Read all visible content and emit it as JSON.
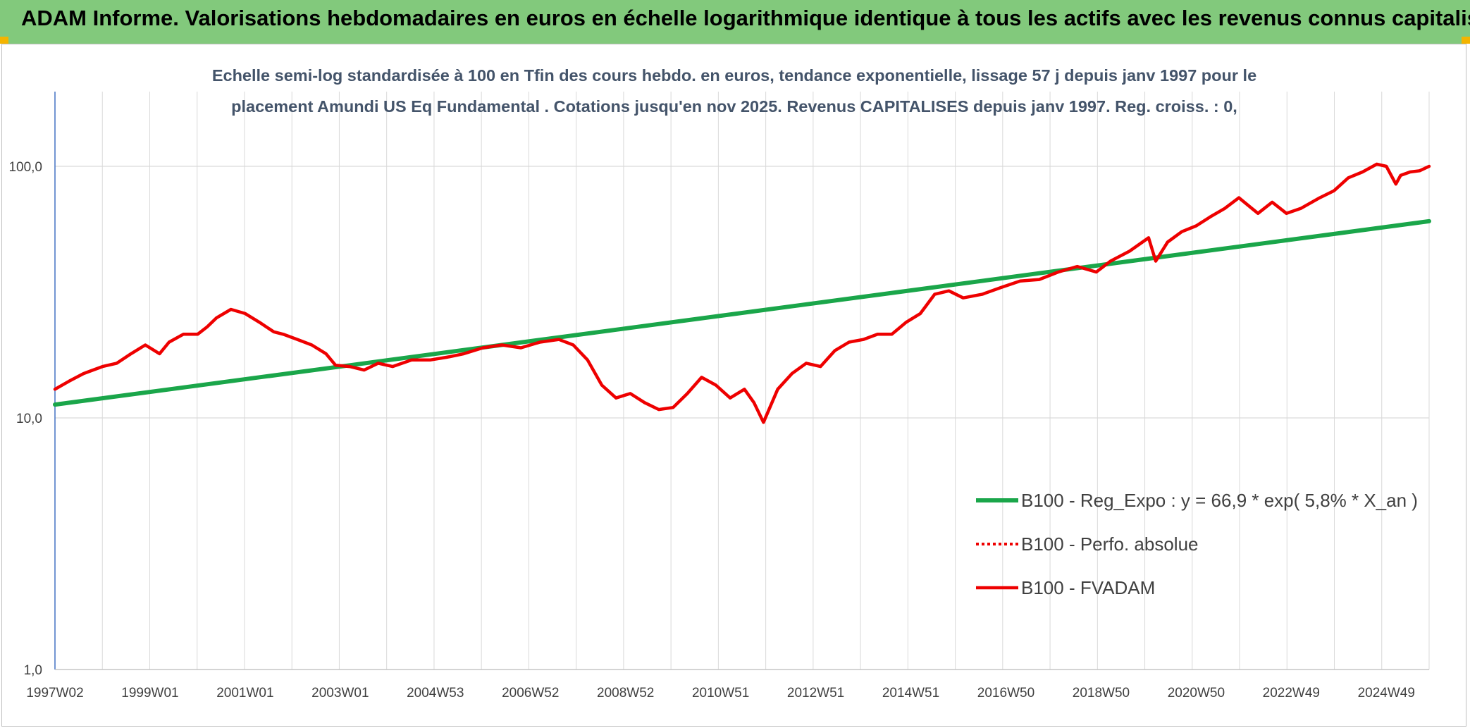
{
  "header": {
    "title": "ADAM Informe. Valorisations hebdomadaires en euros en échelle logarithmique identique à tous les actifs avec les revenus connus capitalisés"
  },
  "colors": {
    "header_bg": "#82c97c",
    "regression": "#1aa64a",
    "fvadam": "#ee0000",
    "perfo": "#ee0000",
    "grid": "#d9d9d9",
    "axis": "#4472c4"
  },
  "chart_data": {
    "type": "line",
    "subtitle_line1": "Echelle semi-log standardisée à 100 en Tfin des cours hebdo. en euros, tendance exponentielle, lissage 57 j depuis janv 1997 pour le",
    "subtitle_line2": "placement Amundi US Eq Fundamental . Cotations jusqu'en nov 2025. Revenus CAPITALISES depuis janv 1997. Reg. croiss. : 0,",
    "y_scale": "log",
    "ylim": [
      1,
      200
    ],
    "y_ticks": [
      "1,0",
      "10,0",
      "100,0"
    ],
    "y_tick_values": [
      1,
      10,
      100
    ],
    "xlim": [
      1997.0,
      2025.9
    ],
    "x_ticks": [
      {
        "label": "1997W02",
        "x": 1997.0
      },
      {
        "label": "1999W01",
        "x": 1999.0
      },
      {
        "label": "2001W01",
        "x": 2001.0
      },
      {
        "label": "2003W01",
        "x": 2003.0
      },
      {
        "label": "2004W53",
        "x": 2005.0
      },
      {
        "label": "2006W52",
        "x": 2007.0
      },
      {
        "label": "2008W52",
        "x": 2009.0
      },
      {
        "label": "2010W51",
        "x": 2011.0
      },
      {
        "label": "2012W51",
        "x": 2013.0
      },
      {
        "label": "2014W51",
        "x": 2015.0
      },
      {
        "label": "2016W50",
        "x": 2017.0
      },
      {
        "label": "2018W50",
        "x": 2019.0
      },
      {
        "label": "2020W50",
        "x": 2021.0
      },
      {
        "label": "2022W49",
        "x": 2023.0
      },
      {
        "label": "2024W49",
        "x": 2025.0
      }
    ],
    "grid": true,
    "legend_position": "right",
    "series": [
      {
        "name": "B100 - Reg_Expo : y = 66,9 * exp( 5,8% *  X_an )",
        "style": "solid",
        "x": [
          1997.0,
          2025.9
        ],
        "y": [
          11.3,
          60.5
        ]
      },
      {
        "name": "B100 - Perfo. absolue",
        "style": "dotted",
        "x": [],
        "y": []
      },
      {
        "name": "B100 - FVADAM",
        "style": "solid",
        "x": [
          1997.0,
          1997.3,
          1997.6,
          1998.0,
          1998.3,
          1998.6,
          1998.9,
          1999.2,
          1999.4,
          1999.7,
          2000.0,
          2000.2,
          2000.4,
          2000.7,
          2001.0,
          2001.3,
          2001.6,
          2001.8,
          2002.1,
          2002.4,
          2002.7,
          2002.9,
          2003.2,
          2003.5,
          2003.8,
          2004.1,
          2004.5,
          2004.9,
          2005.3,
          2005.6,
          2006.0,
          2006.4,
          2006.8,
          2007.2,
          2007.6,
          2007.9,
          2008.2,
          2008.5,
          2008.8,
          2009.1,
          2009.4,
          2009.7,
          2010.0,
          2010.3,
          2010.6,
          2010.9,
          2011.2,
          2011.5,
          2011.7,
          2011.9,
          2012.2,
          2012.5,
          2012.8,
          2013.1,
          2013.4,
          2013.7,
          2014.0,
          2014.3,
          2014.6,
          2014.9,
          2015.2,
          2015.5,
          2015.8,
          2016.1,
          2016.5,
          2016.9,
          2017.3,
          2017.7,
          2018.1,
          2018.5,
          2018.9,
          2019.2,
          2019.6,
          2020.0,
          2020.15,
          2020.4,
          2020.7,
          2021.0,
          2021.3,
          2021.6,
          2021.9,
          2022.3,
          2022.6,
          2022.9,
          2023.2,
          2023.6,
          2023.9,
          2024.2,
          2024.5,
          2024.8,
          2025.0,
          2025.2,
          2025.3,
          2025.5,
          2025.7,
          2025.9
        ],
        "y": [
          13.0,
          14.0,
          15.0,
          16.0,
          16.5,
          18.0,
          19.5,
          18.0,
          20.0,
          21.5,
          21.5,
          23.0,
          25.0,
          27.0,
          26.0,
          24.0,
          22.0,
          21.5,
          20.5,
          19.5,
          18.0,
          16.2,
          16.0,
          15.5,
          16.5,
          16.0,
          17.0,
          17.0,
          17.5,
          18.0,
          19.0,
          19.5,
          19.0,
          20.0,
          20.5,
          19.5,
          17.0,
          13.5,
          12.0,
          12.5,
          11.5,
          10.8,
          11.0,
          12.5,
          14.5,
          13.5,
          12.0,
          13.0,
          11.5,
          9.6,
          13.0,
          15.0,
          16.5,
          16.0,
          18.5,
          20.0,
          20.5,
          21.5,
          21.5,
          24.0,
          26.0,
          31.0,
          32.0,
          30.0,
          31.0,
          33.0,
          35.0,
          35.5,
          38.0,
          40.0,
          38.0,
          42.0,
          46.0,
          52.0,
          42.0,
          50.0,
          55.0,
          58.0,
          63.0,
          68.0,
          75.0,
          65.0,
          72.0,
          65.0,
          68.0,
          75.0,
          80.0,
          90.0,
          95.0,
          102.0,
          100.0,
          85.0,
          92.0,
          95.0,
          96.0,
          100.0
        ]
      }
    ]
  }
}
